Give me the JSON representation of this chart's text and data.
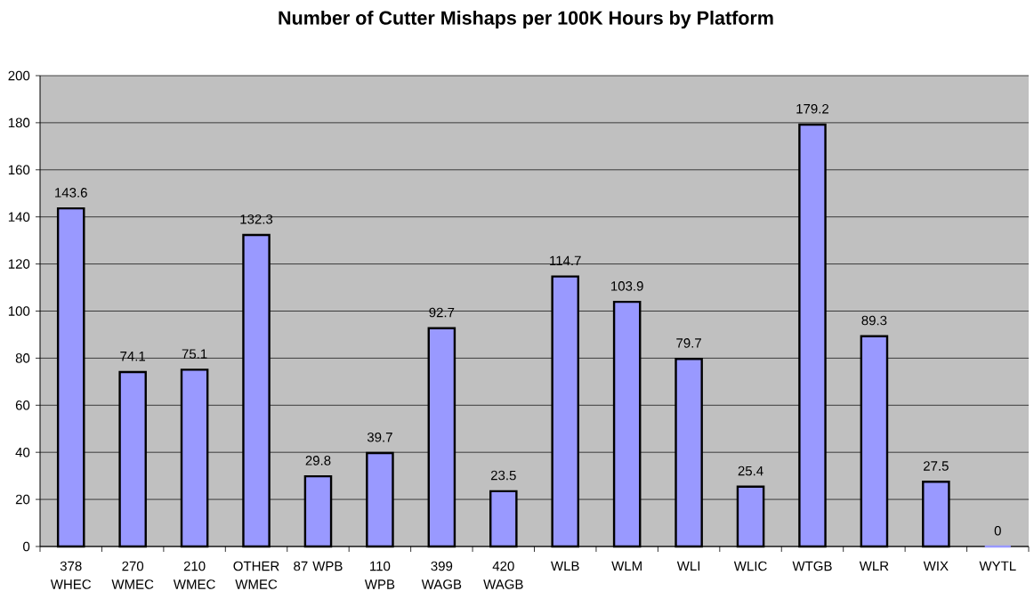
{
  "chart_data": {
    "type": "bar",
    "title": "Number of Cutter Mishaps per 100K Hours by Platform",
    "categories": [
      "378 WHEC",
      "270 WMEC",
      "210 WMEC",
      "OTHER WMEC",
      "87 WPB",
      "110 WPB",
      "399 WAGB",
      "420 WAGB",
      "WLB",
      "WLM",
      "WLI",
      "WLIC",
      "WTGB",
      "WLR",
      "WIX",
      "WYTL"
    ],
    "values": [
      143.6,
      74.1,
      75.1,
      132.3,
      29.8,
      39.7,
      92.7,
      23.5,
      114.7,
      103.9,
      79.7,
      25.4,
      179.2,
      89.3,
      27.5,
      0
    ],
    "color": "#9999ff",
    "ylim": [
      0,
      200
    ],
    "yticks": [
      0,
      20,
      40,
      60,
      80,
      100,
      120,
      140,
      160,
      180,
      200
    ],
    "grid": "y",
    "data_labels": true
  }
}
